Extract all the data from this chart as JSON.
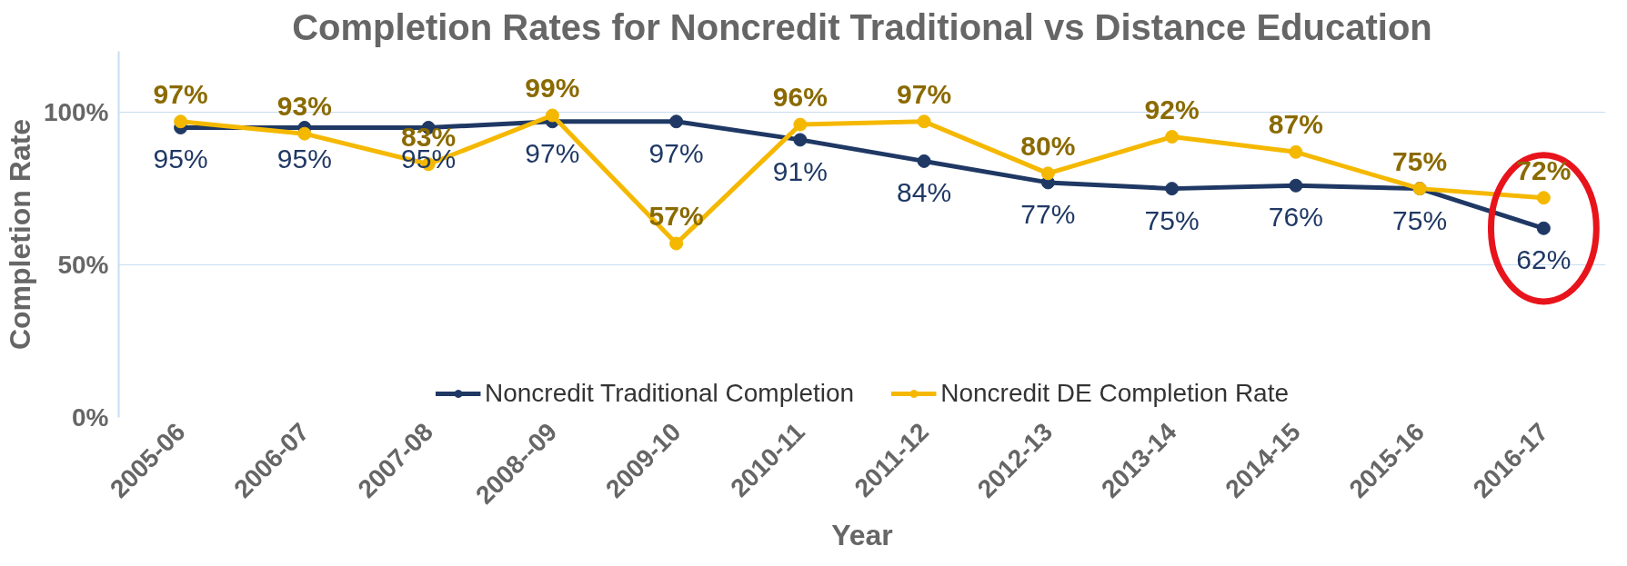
{
  "chart_data": {
    "type": "line",
    "title": "Completion Rates for Noncredit Traditional vs Distance Education",
    "xlabel": "Year",
    "ylabel": "Completion Rate",
    "categories": [
      "2005-06",
      "2006-07",
      "2007-08",
      "2008--09",
      "2009-10",
      "2010-11",
      "2011-12",
      "2012-13",
      "2013-14",
      "2014-15",
      "2015-16",
      "2016-17"
    ],
    "series": [
      {
        "name": "Noncredit Traditional Completion",
        "color": "#1f3864",
        "values": [
          95,
          95,
          95,
          97,
          97,
          91,
          84,
          77,
          75,
          76,
          75,
          62
        ],
        "value_labels": [
          "95%",
          "95%",
          "95%",
          "97%",
          "97%",
          "91%",
          "84%",
          "77%",
          "75%",
          "76%",
          "75%",
          "62%"
        ]
      },
      {
        "name": "Noncredit DE Completion Rate",
        "color": "#f5b800",
        "values": [
          97,
          93,
          83,
          99,
          57,
          96,
          97,
          80,
          92,
          87,
          75,
          72
        ],
        "value_labels": [
          "97%",
          "93%",
          "83%",
          "99%",
          "57%",
          "96%",
          "97%",
          "80%",
          "92%",
          "87%",
          "75%",
          "72%"
        ]
      }
    ],
    "ylim": [
      0,
      120
    ],
    "yticks": [
      {
        "value": 0,
        "label": "0%"
      },
      {
        "value": 50,
        "label": "50%"
      },
      {
        "value": 100,
        "label": "100%"
      }
    ],
    "grid": "y",
    "legend": "bottom",
    "marker": "circle",
    "line_style": "solid"
  }
}
